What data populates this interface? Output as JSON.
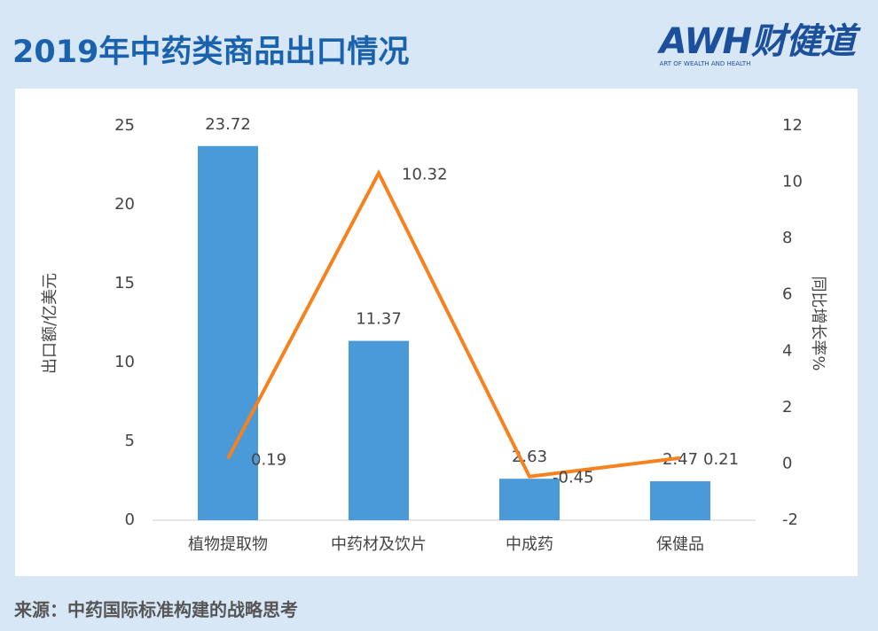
{
  "header": {
    "title": "2019年中药类商品出口情况"
  },
  "logo": {
    "brand": "AWH财健道",
    "tagline": "ART OF WEALTH AND HEALTH"
  },
  "source": "来源：中药国际标准构建的战略思考",
  "chart_data": {
    "type": "bar-line",
    "categories": [
      "植物提取物",
      "中药材及饮片",
      "中成药",
      "保健品"
    ],
    "series": [
      {
        "type": "bar",
        "color": "#4a9ad9",
        "values": [
          23.72,
          11.37,
          2.63,
          2.47
        ]
      },
      {
        "type": "line",
        "axis": "y2",
        "color": "#f5821f",
        "values": [
          0.19,
          10.32,
          -0.45,
          0.21
        ]
      }
    ],
    "y_label": "出口额/亿美元",
    "y2_label": "同比增长率%",
    "ylim": [
      0,
      25
    ],
    "yticks": [
      0,
      5,
      10,
      15,
      20,
      25
    ],
    "y2lim": [
      -2,
      12
    ],
    "y2ticks": [
      -2,
      0,
      2,
      4,
      6,
      8,
      10,
      12
    ],
    "grid": false
  }
}
